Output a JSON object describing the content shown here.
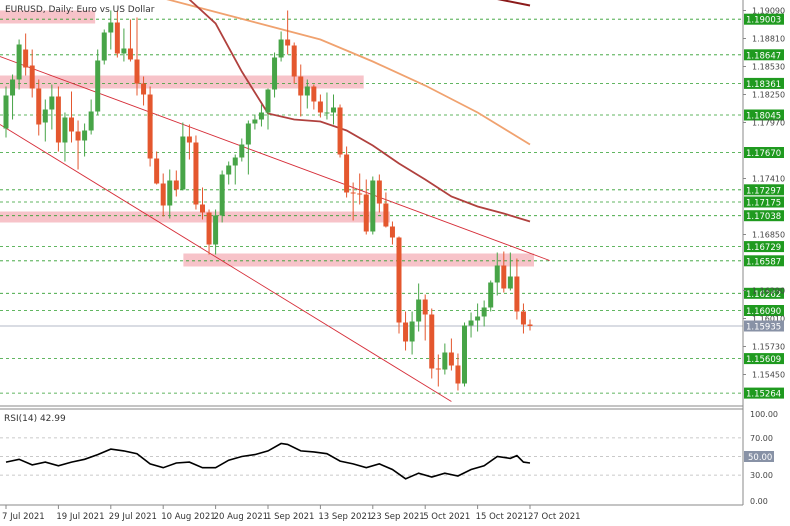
{
  "chart_data": {
    "type": "candlestick",
    "title": "EURUSD, Daily:  Euro vs US Dollar",
    "price_axis": {
      "ylim": [
        1.15155,
        1.19155
      ],
      "tick_labels": [
        "1.19090",
        "1.18810",
        "1.18530",
        "1.18250",
        "1.17970",
        "1.17410",
        "1.16850",
        "1.16290",
        "1.16010",
        "1.15730",
        "1.15450"
      ]
    },
    "horizontal_levels": [
      1.19003,
      1.18647,
      1.18361,
      1.18045,
      1.1767,
      1.17297,
      1.17175,
      1.17038,
      1.16729,
      1.16587,
      1.16262,
      1.1609,
      1.15609,
      1.15264
    ],
    "current_price": 1.15935,
    "x_tick_labels": [
      "7 Jul 2021",
      "19 Jul 2021",
      "29 Jul 2021",
      "10 Aug 2021",
      "20 Aug 2021",
      "1 Sep 2021",
      "13 Sep 2021",
      "23 Sep 2021",
      "5 Oct 2021",
      "15 Oct 2021",
      "27 Oct 2021"
    ],
    "zones": [
      {
        "from": "7 Jul 2021",
        "to": "26 Jul 2021",
        "top": 1.1909,
        "bottom": 1.1896
      },
      {
        "from": "7 Jul 2021",
        "to": "21 Sep 2021",
        "top": 1.1844,
        "bottom": 1.1831
      },
      {
        "from": "7 Jul 2021",
        "to": "27 Sep 2021",
        "top": 1.1708,
        "bottom": 1.1697
      },
      {
        "from": "16 Aug 2021",
        "to": "27 Oct 2021",
        "top": 1.1666,
        "bottom": 1.1653
      }
    ],
    "channel_lines": [
      {
        "from": [
          "7 Jul 2021",
          1.1863
        ],
        "to": [
          "1 Nov 2021",
          1.1659
        ]
      },
      {
        "from": [
          "7 Jul 2021",
          1.1795
        ],
        "to": [
          "11 Oct 2021",
          1.1518
        ]
      }
    ],
    "moving_averages": [
      {
        "color": "#8b1a1a",
        "points": [
          [
            "13 Oct 2021",
            1.1927
          ],
          [
            "27 Oct 2021",
            1.1914
          ]
        ]
      },
      {
        "color": "#f0a26f",
        "points": [
          [
            "19 Jul 2021",
            1.1942
          ],
          [
            "29 Jul 2021",
            1.1935
          ],
          [
            "13 Sep 2021",
            1.188
          ],
          [
            "23 Sep 2021",
            1.1858
          ],
          [
            "5 Oct 2021",
            1.1834
          ],
          [
            "15 Oct 2021",
            1.1807
          ],
          [
            "27 Oct 2021",
            1.1775
          ]
        ]
      },
      {
        "color": "#b0413e",
        "points": [
          [
            "16 Aug 2021",
            1.192
          ],
          [
            "20 Aug 2021",
            1.1896
          ],
          [
            "26 Aug 2021",
            1.1848
          ],
          [
            "1 Sep 2021",
            1.1806
          ],
          [
            "7 Sep 2021",
            1.18
          ],
          [
            "13 Sep 2021",
            1.1798
          ],
          [
            "17 Sep 2021",
            1.1789
          ],
          [
            "23 Sep 2021",
            1.1774
          ],
          [
            "29 Sep 2021",
            1.1756
          ],
          [
            "5 Oct 2021",
            1.174
          ],
          [
            "11 Oct 2021",
            1.1723
          ],
          [
            "15 Oct 2021",
            1.1713
          ],
          [
            "21 Oct 2021",
            1.1706
          ],
          [
            "27 Oct 2021",
            1.1698
          ]
        ]
      }
    ],
    "candles": [
      {
        "date": "7 Jul 2021",
        "o": 1.1791,
        "h": 1.1833,
        "l": 1.1782,
        "c": 1.1824
      },
      {
        "date": "8 Jul 2021",
        "o": 1.1824,
        "h": 1.1845,
        "l": 1.18,
        "c": 1.184
      },
      {
        "date": "9 Jul 2021",
        "o": 1.184,
        "h": 1.188,
        "l": 1.183,
        "c": 1.1875
      },
      {
        "date": "12 Jul 2021",
        "o": 1.187,
        "h": 1.1886,
        "l": 1.1844,
        "c": 1.1852
      },
      {
        "date": "13 Jul 2021",
        "o": 1.1854,
        "h": 1.187,
        "l": 1.1822,
        "c": 1.1831
      },
      {
        "date": "14 Jul 2021",
        "o": 1.1831,
        "h": 1.184,
        "l": 1.1784,
        "c": 1.1795
      },
      {
        "date": "15 Jul 2021",
        "o": 1.1797,
        "h": 1.182,
        "l": 1.1778,
        "c": 1.181
      },
      {
        "date": "16 Jul 2021",
        "o": 1.181,
        "h": 1.1835,
        "l": 1.179,
        "c": 1.1823
      },
      {
        "date": "19 Jul 2021",
        "o": 1.1823,
        "h": 1.1833,
        "l": 1.1768,
        "c": 1.1777
      },
      {
        "date": "20 Jul 2021",
        "o": 1.1777,
        "h": 1.1807,
        "l": 1.1758,
        "c": 1.1802
      },
      {
        "date": "21 Jul 2021",
        "o": 1.1802,
        "h": 1.1828,
        "l": 1.1777,
        "c": 1.1788
      },
      {
        "date": "22 Jul 2021",
        "o": 1.1788,
        "h": 1.1799,
        "l": 1.175,
        "c": 1.1779
      },
      {
        "date": "23 Jul 2021",
        "o": 1.1779,
        "h": 1.1796,
        "l": 1.1763,
        "c": 1.1789
      },
      {
        "date": "26 Jul 2021",
        "o": 1.1789,
        "h": 1.182,
        "l": 1.1785,
        "c": 1.1808
      },
      {
        "date": "27 Jul 2021",
        "o": 1.1808,
        "h": 1.187,
        "l": 1.1805,
        "c": 1.1859
      },
      {
        "date": "28 Jul 2021",
        "o": 1.1859,
        "h": 1.189,
        "l": 1.1855,
        "c": 1.1887
      },
      {
        "date": "29 Jul 2021",
        "o": 1.1887,
        "h": 1.1909,
        "l": 1.187,
        "c": 1.1897
      },
      {
        "date": "30 Jul 2021",
        "o": 1.1897,
        "h": 1.1909,
        "l": 1.1862,
        "c": 1.1866
      },
      {
        "date": "2 Aug 2021",
        "o": 1.1866,
        "h": 1.1891,
        "l": 1.1858,
        "c": 1.1871
      },
      {
        "date": "3 Aug 2021",
        "o": 1.1871,
        "h": 1.19,
        "l": 1.1858,
        "c": 1.186
      },
      {
        "date": "4 Aug 2021",
        "o": 1.186,
        "h": 1.1902,
        "l": 1.1824,
        "c": 1.1836
      },
      {
        "date": "5 Aug 2021",
        "o": 1.1836,
        "h": 1.1843,
        "l": 1.1814,
        "c": 1.1825
      },
      {
        "date": "6 Aug 2021",
        "o": 1.1825,
        "h": 1.1833,
        "l": 1.1753,
        "c": 1.1761
      },
      {
        "date": "9 Aug 2021",
        "o": 1.1761,
        "h": 1.1768,
        "l": 1.1735,
        "c": 1.1736
      },
      {
        "date": "10 Aug 2021",
        "o": 1.1736,
        "h": 1.1746,
        "l": 1.1703,
        "c": 1.1714
      },
      {
        "date": "11 Aug 2021",
        "o": 1.1714,
        "h": 1.175,
        "l": 1.1701,
        "c": 1.1739
      },
      {
        "date": "12 Aug 2021",
        "o": 1.1739,
        "h": 1.1749,
        "l": 1.1723,
        "c": 1.173
      },
      {
        "date": "13 Aug 2021",
        "o": 1.173,
        "h": 1.1797,
        "l": 1.1729,
        "c": 1.1783
      },
      {
        "date": "16 Aug 2021",
        "o": 1.1783,
        "h": 1.1795,
        "l": 1.176,
        "c": 1.1777
      },
      {
        "date": "17 Aug 2021",
        "o": 1.1777,
        "h": 1.1784,
        "l": 1.171,
        "c": 1.1715
      },
      {
        "date": "18 Aug 2021",
        "o": 1.1715,
        "h": 1.1732,
        "l": 1.17,
        "c": 1.1707
      },
      {
        "date": "19 Aug 2021",
        "o": 1.1707,
        "h": 1.171,
        "l": 1.1665,
        "c": 1.1675
      },
      {
        "date": "20 Aug 2021",
        "o": 1.1675,
        "h": 1.171,
        "l": 1.1665,
        "c": 1.1704
      },
      {
        "date": "23 Aug 2021",
        "o": 1.1704,
        "h": 1.1749,
        "l": 1.1697,
        "c": 1.1745
      },
      {
        "date": "24 Aug 2021",
        "o": 1.1745,
        "h": 1.1758,
        "l": 1.1735,
        "c": 1.1754
      },
      {
        "date": "25 Aug 2021",
        "o": 1.1754,
        "h": 1.1765,
        "l": 1.1735,
        "c": 1.1762
      },
      {
        "date": "26 Aug 2021",
        "o": 1.1762,
        "h": 1.1781,
        "l": 1.1758,
        "c": 1.1775
      },
      {
        "date": "27 Aug 2021",
        "o": 1.1775,
        "h": 1.1799,
        "l": 1.1745,
        "c": 1.1796
      },
      {
        "date": "30 Aug 2021",
        "o": 1.1796,
        "h": 1.1805,
        "l": 1.179,
        "c": 1.18
      },
      {
        "date": "31 Aug 2021",
        "o": 1.18,
        "h": 1.1815,
        "l": 1.1793,
        "c": 1.1807
      },
      {
        "date": "1 Sep 2021",
        "o": 1.1807,
        "h": 1.1831,
        "l": 1.179,
        "c": 1.183
      },
      {
        "date": "2 Sep 2021",
        "o": 1.183,
        "h": 1.1867,
        "l": 1.1822,
        "c": 1.1862
      },
      {
        "date": "3 Sep 2021",
        "o": 1.1862,
        "h": 1.1888,
        "l": 1.1858,
        "c": 1.188
      },
      {
        "date": "6 Sep 2021",
        "o": 1.188,
        "h": 1.1909,
        "l": 1.1865,
        "c": 1.1874
      },
      {
        "date": "7 Sep 2021",
        "o": 1.1874,
        "h": 1.1877,
        "l": 1.1836,
        "c": 1.1843
      },
      {
        "date": "8 Sep 2021",
        "o": 1.1843,
        "h": 1.1855,
        "l": 1.1803,
        "c": 1.1824
      },
      {
        "date": "9 Sep 2021",
        "o": 1.1824,
        "h": 1.184,
        "l": 1.1811,
        "c": 1.1833
      },
      {
        "date": "10 Sep 2021",
        "o": 1.1833,
        "h": 1.1835,
        "l": 1.181,
        "c": 1.1818
      },
      {
        "date": "13 Sep 2021",
        "o": 1.1818,
        "h": 1.1825,
        "l": 1.1802,
        "c": 1.1807
      },
      {
        "date": "14 Sep 2021",
        "o": 1.1807,
        "h": 1.1827,
        "l": 1.18,
        "c": 1.1807
      },
      {
        "date": "15 Sep 2021",
        "o": 1.1807,
        "h": 1.1825,
        "l": 1.1795,
        "c": 1.1812
      },
      {
        "date": "16 Sep 2021",
        "o": 1.1812,
        "h": 1.1815,
        "l": 1.1762,
        "c": 1.1765
      },
      {
        "date": "17 Sep 2021",
        "o": 1.1765,
        "h": 1.1773,
        "l": 1.1722,
        "c": 1.1727
      },
      {
        "date": "20 Sep 2021",
        "o": 1.1727,
        "h": 1.1737,
        "l": 1.1699,
        "c": 1.1726
      },
      {
        "date": "21 Sep 2021",
        "o": 1.1726,
        "h": 1.1746,
        "l": 1.1715,
        "c": 1.1725
      },
      {
        "date": "22 Sep 2021",
        "o": 1.1725,
        "h": 1.174,
        "l": 1.1685,
        "c": 1.1688
      },
      {
        "date": "23 Sep 2021",
        "o": 1.1688,
        "h": 1.1743,
        "l": 1.1685,
        "c": 1.1739
      },
      {
        "date": "24 Sep 2021",
        "o": 1.1739,
        "h": 1.1745,
        "l": 1.1707,
        "c": 1.1716
      },
      {
        "date": "27 Sep 2021",
        "o": 1.1716,
        "h": 1.1727,
        "l": 1.1692,
        "c": 1.1693
      },
      {
        "date": "28 Sep 2021",
        "o": 1.1693,
        "h": 1.1698,
        "l": 1.1675,
        "c": 1.1682
      },
      {
        "date": "29 Sep 2021",
        "o": 1.1682,
        "h": 1.1683,
        "l": 1.1586,
        "c": 1.1597
      },
      {
        "date": "30 Sep 2021",
        "o": 1.1597,
        "h": 1.1608,
        "l": 1.1569,
        "c": 1.1578
      },
      {
        "date": "1 Oct 2021",
        "o": 1.1578,
        "h": 1.1608,
        "l": 1.1565,
        "c": 1.1598
      },
      {
        "date": "4 Oct 2021",
        "o": 1.1598,
        "h": 1.1636,
        "l": 1.1588,
        "c": 1.162
      },
      {
        "date": "5 Oct 2021",
        "o": 1.162,
        "h": 1.1625,
        "l": 1.1579,
        "c": 1.1605
      },
      {
        "date": "6 Oct 2021",
        "o": 1.1605,
        "h": 1.1611,
        "l": 1.1541,
        "c": 1.1551
      },
      {
        "date": "7 Oct 2021",
        "o": 1.1551,
        "h": 1.1565,
        "l": 1.1533,
        "c": 1.155
      },
      {
        "date": "8 Oct 2021",
        "o": 1.155,
        "h": 1.1576,
        "l": 1.1545,
        "c": 1.1567
      },
      {
        "date": "11 Oct 2021",
        "o": 1.1567,
        "h": 1.1581,
        "l": 1.1549,
        "c": 1.1554
      },
      {
        "date": "12 Oct 2021",
        "o": 1.1554,
        "h": 1.1566,
        "l": 1.1529,
        "c": 1.1536
      },
      {
        "date": "13 Oct 2021",
        "o": 1.1536,
        "h": 1.1597,
        "l": 1.1533,
        "c": 1.1594
      },
      {
        "date": "14 Oct 2021",
        "o": 1.1594,
        "h": 1.1607,
        "l": 1.1582,
        "c": 1.1599
      },
      {
        "date": "15 Oct 2021",
        "o": 1.1599,
        "h": 1.1616,
        "l": 1.1588,
        "c": 1.1603
      },
      {
        "date": "18 Oct 2021",
        "o": 1.1603,
        "h": 1.1619,
        "l": 1.1593,
        "c": 1.1612
      },
      {
        "date": "19 Oct 2021",
        "o": 1.1612,
        "h": 1.1639,
        "l": 1.1608,
        "c": 1.1637
      },
      {
        "date": "20 Oct 2021",
        "o": 1.1637,
        "h": 1.1667,
        "l": 1.1624,
        "c": 1.1654
      },
      {
        "date": "21 Oct 2021",
        "o": 1.1654,
        "h": 1.1668,
        "l": 1.1627,
        "c": 1.1631
      },
      {
        "date": "22 Oct 2021",
        "o": 1.1631,
        "h": 1.1667,
        "l": 1.1629,
        "c": 1.1643
      },
      {
        "date": "25 Oct 2021",
        "o": 1.1643,
        "h": 1.1661,
        "l": 1.16,
        "c": 1.1608
      },
      {
        "date": "26 Oct 2021",
        "o": 1.1608,
        "h": 1.1616,
        "l": 1.1586,
        "c": 1.1595
      },
      {
        "date": "27 Oct 2021",
        "o": 1.1595,
        "h": 1.16,
        "l": 1.1589,
        "c": 1.15935
      }
    ],
    "rsi": {
      "label": "RSI(14) 42.99",
      "ylim": [
        0,
        100
      ],
      "tick_labels": [
        "100.00",
        "70.00",
        "50.00",
        "30.00",
        "0.00"
      ],
      "levels": [
        70,
        50,
        30
      ],
      "values": [
        [
          "7 Jul 2021",
          44
        ],
        [
          "9 Jul 2021",
          47
        ],
        [
          "13 Jul 2021",
          41
        ],
        [
          "15 Jul 2021",
          44
        ],
        [
          "19 Jul 2021",
          40
        ],
        [
          "21 Jul 2021",
          44
        ],
        [
          "23 Jul 2021",
          47
        ],
        [
          "27 Jul 2021",
          52
        ],
        [
          "29 Jul 2021",
          58
        ],
        [
          "2 Aug 2021",
          56
        ],
        [
          "4 Aug 2021",
          53
        ],
        [
          "6 Aug 2021",
          42
        ],
        [
          "10 Aug 2021",
          38
        ],
        [
          "12 Aug 2021",
          43
        ],
        [
          "16 Aug 2021",
          44
        ],
        [
          "18 Aug 2021",
          38
        ],
        [
          "20 Aug 2021",
          38
        ],
        [
          "24 Aug 2021",
          46
        ],
        [
          "26 Aug 2021",
          50
        ],
        [
          "30 Aug 2021",
          52
        ],
        [
          "1 Sep 2021",
          56
        ],
        [
          "3 Sep 2021",
          64
        ],
        [
          "6 Sep 2021",
          63
        ],
        [
          "8 Sep 2021",
          56
        ],
        [
          "10 Sep 2021",
          55
        ],
        [
          "14 Sep 2021",
          53
        ],
        [
          "16 Sep 2021",
          45
        ],
        [
          "20 Sep 2021",
          42
        ],
        [
          "22 Sep 2021",
          38
        ],
        [
          "24 Sep 2021",
          42
        ],
        [
          "28 Sep 2021",
          36
        ],
        [
          "30 Sep 2021",
          26
        ],
        [
          "4 Oct 2021",
          32
        ],
        [
          "6 Oct 2021",
          28
        ],
        [
          "8 Oct 2021",
          32
        ],
        [
          "12 Oct 2021",
          29
        ],
        [
          "14 Oct 2021",
          36
        ],
        [
          "18 Oct 2021",
          40
        ],
        [
          "20 Oct 2021",
          50
        ],
        [
          "22 Oct 2021",
          48
        ],
        [
          "25 Oct 2021",
          51
        ],
        [
          "26 Oct 2021",
          44
        ],
        [
          "27 Oct 2021",
          43
        ]
      ]
    },
    "colors": {
      "bull": "#47a447",
      "bear": "#e4572e",
      "grid": "#2e9e2e",
      "zone": "#f6b8c0",
      "channel": "#d62f3a",
      "current_label_bg": "#8892a6",
      "level_label_bg": "#1f9a1f"
    }
  }
}
